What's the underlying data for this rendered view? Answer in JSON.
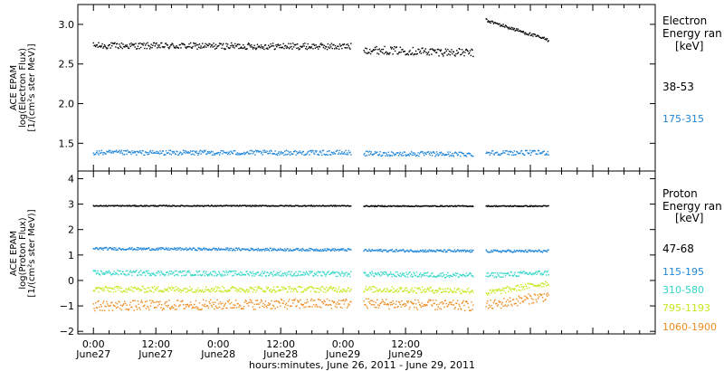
{
  "chart_data": [
    {
      "type": "scatter",
      "title": "",
      "ylabel_lines": [
        "ACE EPAM",
        "log(Electron Flux)",
        "[1/(cm²s ster MeV)]"
      ],
      "ylim": [
        1.15,
        3.25
      ],
      "yticks": [
        1.5,
        2.0,
        2.5,
        3.0
      ],
      "ytick_labels": [
        "1.5",
        "2.0",
        "2.5",
        "3.0"
      ],
      "legend_lines": [
        "Electron",
        "Energy ran",
        "[keV]"
      ],
      "series": [
        {
          "name": "38-53",
          "color": "#000000",
          "segments": [
            {
              "t0": 0.0,
              "t1": 49.5,
              "v0": 2.73,
              "v1": 2.72,
              "spread": 0.04
            },
            {
              "t0": 52.0,
              "t1": 73.0,
              "v0": 2.68,
              "v1": 2.64,
              "spread": 0.05
            },
            {
              "t0": 75.5,
              "t1": 87.5,
              "v0": 3.05,
              "v1": 2.8,
              "spread": 0.02
            }
          ]
        },
        {
          "name": "175-315",
          "color": "#1f86d9",
          "segments": [
            {
              "t0": 0.0,
              "t1": 49.5,
              "v0": 1.38,
              "v1": 1.38,
              "spread": 0.03
            },
            {
              "t0": 52.0,
              "t1": 73.0,
              "v0": 1.37,
              "v1": 1.36,
              "spread": 0.03
            },
            {
              "t0": 75.5,
              "t1": 87.5,
              "v0": 1.38,
              "v1": 1.38,
              "spread": 0.03
            }
          ]
        }
      ]
    },
    {
      "type": "scatter",
      "title": "",
      "ylabel_lines": [
        "ACE EPAM",
        "log(Proton Flux)",
        "[1/(cm²s ster MeV)]"
      ],
      "ylim": [
        -2.1,
        4.3
      ],
      "yticks": [
        -2,
        -1,
        0,
        1,
        2,
        3,
        4
      ],
      "ytick_labels": [
        "−2",
        "−1",
        "0",
        "1",
        "2",
        "3",
        "4"
      ],
      "legend_lines": [
        "Proton",
        "Energy ran",
        "[keV]"
      ],
      "series": [
        {
          "name": "47-68",
          "color": "#000000",
          "segments": [
            {
              "t0": 0.0,
              "t1": 49.5,
              "v0": 2.93,
              "v1": 2.93,
              "spread": 0.02
            },
            {
              "t0": 52.0,
              "t1": 73.0,
              "v0": 2.92,
              "v1": 2.92,
              "spread": 0.02
            },
            {
              "t0": 75.5,
              "t1": 87.5,
              "v0": 2.92,
              "v1": 2.92,
              "spread": 0.02
            }
          ]
        },
        {
          "name": "115-195",
          "color": "#1f86d9",
          "segments": [
            {
              "t0": 0.0,
              "t1": 49.5,
              "v0": 1.25,
              "v1": 1.2,
              "spread": 0.05
            },
            {
              "t0": 52.0,
              "t1": 73.0,
              "v0": 1.18,
              "v1": 1.15,
              "spread": 0.05
            },
            {
              "t0": 75.5,
              "t1": 87.5,
              "v0": 1.15,
              "v1": 1.15,
              "spread": 0.05
            }
          ]
        },
        {
          "name": "310-580",
          "color": "#33d6c8",
          "segments": [
            {
              "t0": 0.0,
              "t1": 49.5,
              "v0": 0.3,
              "v1": 0.25,
              "spread": 0.1
            },
            {
              "t0": 52.0,
              "t1": 73.0,
              "v0": 0.25,
              "v1": 0.2,
              "spread": 0.1
            },
            {
              "t0": 75.5,
              "t1": 87.5,
              "v0": 0.2,
              "v1": 0.3,
              "spread": 0.1
            }
          ]
        },
        {
          "name": "795-1193",
          "color": "#c8e61e",
          "segments": [
            {
              "t0": 0.0,
              "t1": 49.5,
              "v0": -0.35,
              "v1": -0.35,
              "spread": 0.12
            },
            {
              "t0": 52.0,
              "t1": 73.0,
              "v0": -0.35,
              "v1": -0.4,
              "spread": 0.12
            },
            {
              "t0": 75.5,
              "t1": 87.5,
              "v0": -0.5,
              "v1": -0.1,
              "spread": 0.12
            }
          ]
        },
        {
          "name": "1060-1900",
          "color": "#ee8a1c",
          "segments": [
            {
              "t0": 0.0,
              "t1": 49.5,
              "v0": -1.0,
              "v1": -0.9,
              "spread": 0.2
            },
            {
              "t0": 52.0,
              "t1": 73.0,
              "v0": -0.9,
              "v1": -1.0,
              "spread": 0.2
            },
            {
              "t0": 75.5,
              "t1": 87.5,
              "v0": -1.0,
              "v1": -0.6,
              "spread": 0.2
            }
          ]
        }
      ]
    }
  ],
  "x_axis": {
    "xlim_hours": [
      -3.0,
      108.0
    ],
    "xlabel": "hours:minutes, June 26, 2011 - June 29, 2011",
    "ticks": [
      {
        "t": 0,
        "time": "0:00",
        "date": "June27"
      },
      {
        "t": 12,
        "time": "12:00",
        "date": "June27"
      },
      {
        "t": 24,
        "time": "0:00",
        "date": "June28"
      },
      {
        "t": 36,
        "time": "12:00",
        "date": "June28"
      },
      {
        "t": 48,
        "time": "0:00",
        "date": "June29"
      },
      {
        "t": 60,
        "time": "12:00",
        "date": "June29"
      }
    ]
  }
}
